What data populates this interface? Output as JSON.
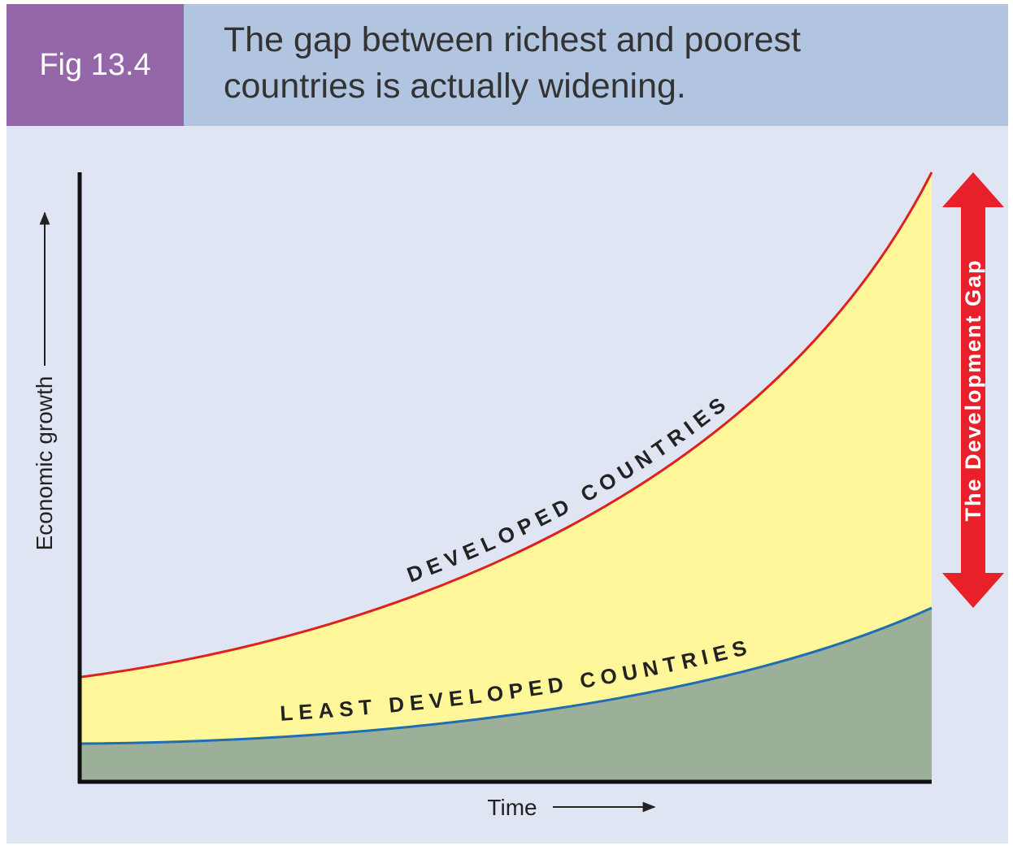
{
  "header": {
    "figure": "Fig 13.4",
    "title_lines": [
      "The gap between richest and poorest",
      "countries is actually widening."
    ]
  },
  "diagram": {
    "upper_curve_label": "DEVELOPED COUNTRIES",
    "lower_curve_label": "LEAST DEVELOPED COUNTRIES",
    "gap_label": "The Development Gap",
    "y_axis_label": "Economic growth",
    "x_axis_label": "Time"
  }
}
